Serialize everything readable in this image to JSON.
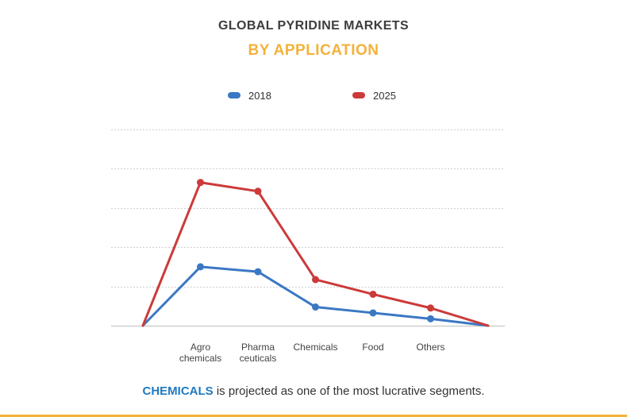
{
  "header": {
    "title": "GLOBAL PYRIDINE MARKETS",
    "subtitle": "BY APPLICATION"
  },
  "footer": {
    "highlight": "CHEMICALS",
    "text": " is projected as one of the most lucrative segments."
  },
  "colors": {
    "series_2018": "#3b78c4",
    "series_2025": "#cc3a3a",
    "title": "#3d3d3d",
    "subtitle": "#f3b23a",
    "highlight": "#1f7ac2",
    "grid": "#cfcfcf"
  },
  "chart_data": {
    "type": "line",
    "title": "GLOBAL PYRIDINE MARKETS",
    "subtitle": "BY APPLICATION",
    "categories": [
      "",
      "Agro chemicals",
      "Pharma ceuticals",
      "Chemicals",
      "Food",
      "Others",
      ""
    ],
    "category_lines": [
      [],
      [
        "Agro",
        "chemicals"
      ],
      [
        "Pharma",
        "ceuticals"
      ],
      [
        "Chemicals"
      ],
      [
        "Food"
      ],
      [
        "Others"
      ],
      []
    ],
    "series": [
      {
        "name": "2018",
        "values": [
          0,
          3.0,
          2.75,
          0.95,
          0.65,
          0.35,
          0
        ],
        "markers": [
          false,
          true,
          true,
          true,
          true,
          true,
          false
        ]
      },
      {
        "name": "2025",
        "values": [
          0,
          7.3,
          6.85,
          2.35,
          1.6,
          0.9,
          0
        ],
        "markers": [
          false,
          true,
          true,
          true,
          true,
          true,
          false
        ]
      }
    ],
    "ylim": [
      0,
      10
    ],
    "y_gridlines": [
      0,
      2,
      4,
      6,
      8,
      10
    ],
    "grid": true,
    "legend": "top-center",
    "xlabel": "",
    "ylabel": ""
  }
}
